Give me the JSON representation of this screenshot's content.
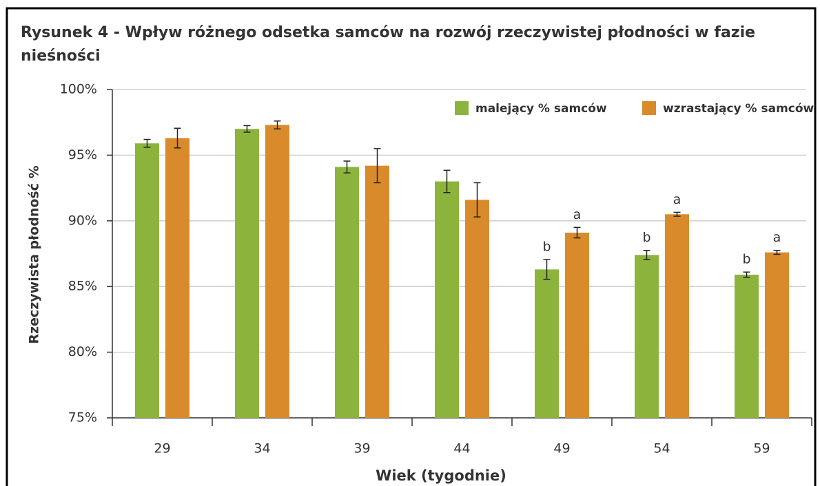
{
  "chart_data": {
    "type": "bar",
    "title": "Rysunek 4 - Wpływ różnego odsetka samców na rozwój rzeczywistej płodności w fazie nieśności",
    "x_label": "Wiek (tygodnie)",
    "y_label": "Rzeczywista płodność %",
    "categories": [
      "29",
      "34",
      "39",
      "44",
      "49",
      "54",
      "59"
    ],
    "series": [
      {
        "name": "malejący % samców",
        "color": "#8cb43c",
        "values": [
          95.9,
          97.0,
          94.1,
          93.0,
          86.3,
          87.4,
          85.9
        ],
        "errors": [
          0.3,
          0.25,
          0.45,
          0.85,
          0.75,
          0.35,
          0.2
        ],
        "labels": [
          null,
          null,
          null,
          null,
          "b",
          "b",
          "b"
        ]
      },
      {
        "name": "wzrastający % samców",
        "color": "#d98a2b",
        "values": [
          96.3,
          97.3,
          94.2,
          91.6,
          89.1,
          90.5,
          87.6
        ],
        "errors": [
          0.75,
          0.3,
          1.3,
          1.3,
          0.4,
          0.15,
          0.15
        ],
        "labels": [
          null,
          null,
          null,
          null,
          "a",
          "a",
          "a"
        ]
      }
    ],
    "ylim": [
      75,
      100
    ],
    "yticks": [
      {
        "value": 75,
        "label": "75%"
      },
      {
        "value": 80,
        "label": "80%"
      },
      {
        "value": 85,
        "label": "85%"
      },
      {
        "value": 90,
        "label": "90%"
      },
      {
        "value": 95,
        "label": "95%"
      },
      {
        "value": 100,
        "label": "100%"
      }
    ],
    "grid": true,
    "legend": "top-right"
  }
}
